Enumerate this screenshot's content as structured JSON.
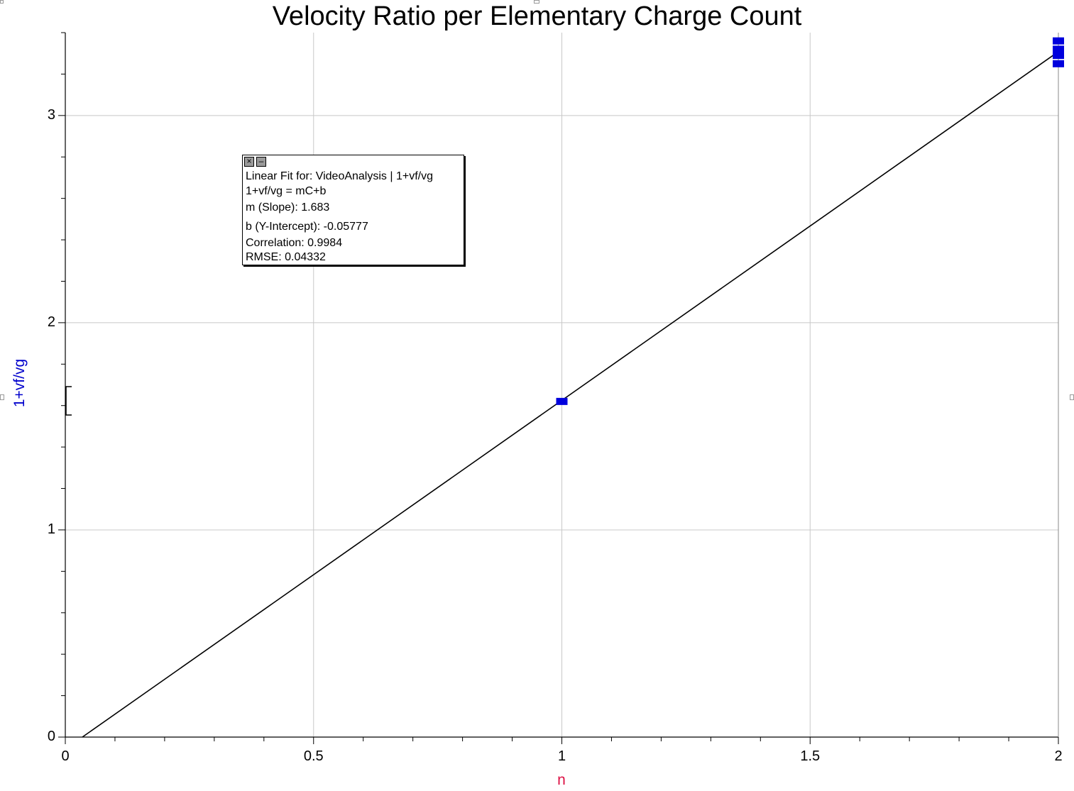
{
  "chart_data": {
    "type": "scatter",
    "title": "Velocity Ratio per Elementary Charge Count",
    "xlabel": "n",
    "ylabel": "1+vf/vg",
    "xlim": [
      0,
      2
    ],
    "ylim": [
      0,
      3.4
    ],
    "x_ticks": [
      "0",
      "0.5",
      "1",
      "1.5",
      "2"
    ],
    "y_ticks": [
      "0",
      "1",
      "2",
      "3"
    ],
    "grid": true,
    "points": [
      {
        "x": 1,
        "y": 1.62
      },
      {
        "x": 2,
        "y": 3.32
      },
      {
        "x": 2,
        "y": 3.29
      },
      {
        "x": 2,
        "y": 3.36
      },
      {
        "x": 2,
        "y": 3.25
      }
    ],
    "fit_line": {
      "slope": 1.683,
      "intercept": -0.05777
    },
    "point_color": "#0000dd",
    "line_color": "#000000"
  },
  "fit_box": {
    "line1": "Linear Fit for: VideoAnalysis | 1+vf/vg",
    "line2": "1+vf/vg = mC+b",
    "line3": "m (Slope): 1.683",
    "line4": "b (Y-Intercept): -0.05777",
    "line5": "Correlation: 0.9984",
    "line6": "RMSE: 0.04332",
    "close_icon": "×",
    "min_icon": "–"
  }
}
